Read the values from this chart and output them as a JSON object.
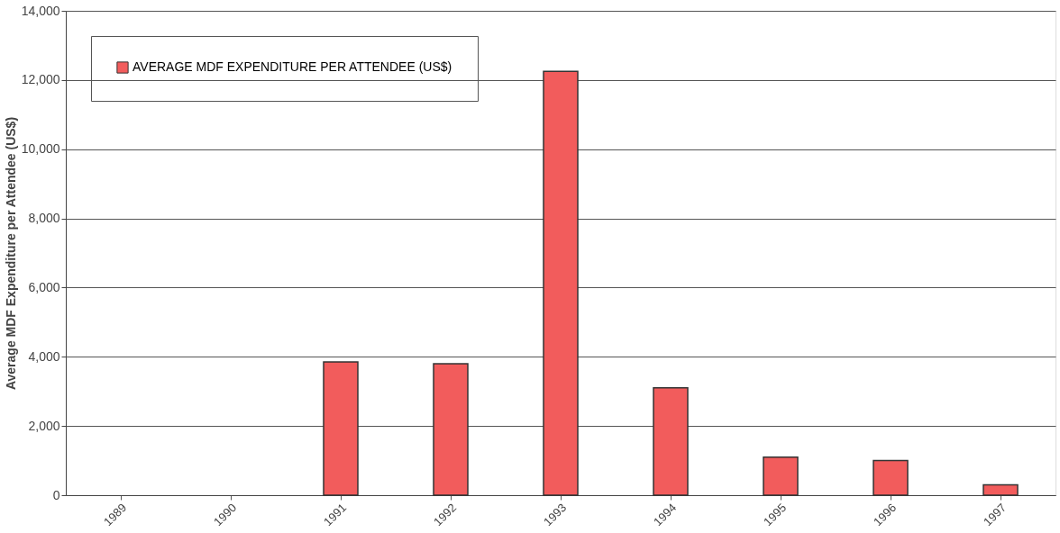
{
  "chart_data": {
    "type": "bar",
    "ylabel": "Average MDF Expenditure per Attendee (US$)",
    "categories": [
      "1989",
      "1990",
      "1991",
      "1992",
      "1993",
      "1994",
      "1995",
      "1996",
      "1997"
    ],
    "series": [
      {
        "name": "AVERAGE MDF EXPENDITURE PER ATTENDEE (US$)",
        "color": "#f25c5c",
        "values": [
          null,
          null,
          3850,
          3800,
          12250,
          3100,
          1100,
          1000,
          300
        ]
      }
    ],
    "ylim": [
      0,
      14000
    ],
    "yticks": [
      0,
      {
        "value": 2000,
        "label": "2,000"
      },
      {
        "value": 4000,
        "label": "4,000"
      },
      {
        "value": 6000,
        "label": "6,000"
      },
      {
        "value": 8000,
        "label": "8,000"
      },
      {
        "value": 10000,
        "label": "10,000"
      },
      {
        "value": 12000,
        "label": "12,000"
      },
      {
        "value": 14000,
        "label": "14,000"
      }
    ],
    "grid": "y",
    "legend": "top left"
  }
}
